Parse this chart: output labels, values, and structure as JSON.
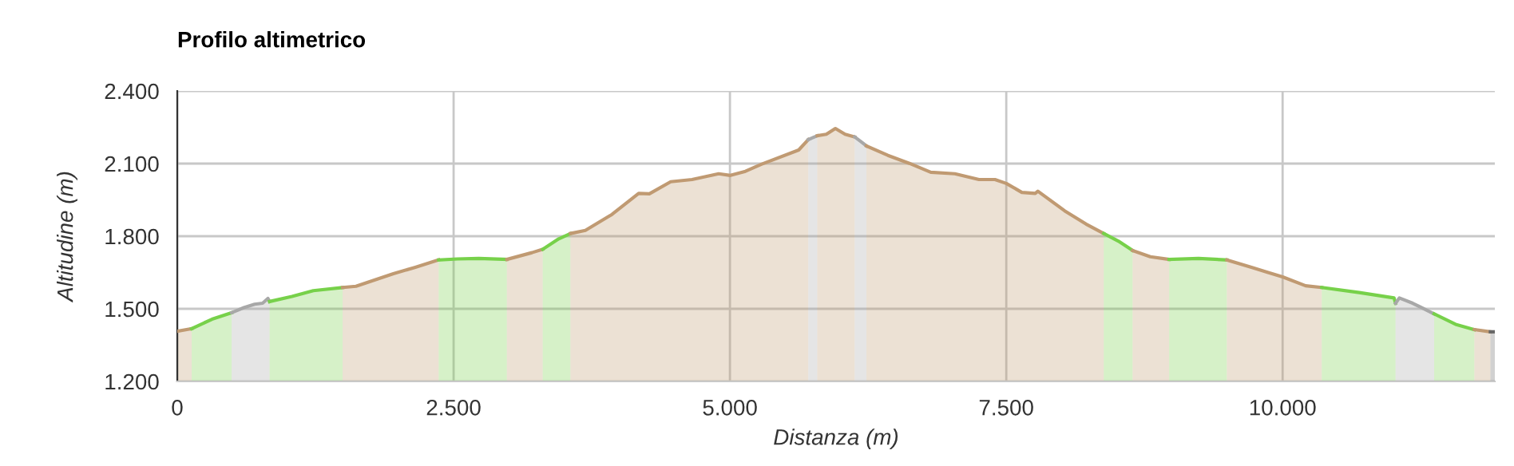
{
  "chart_data": {
    "type": "area",
    "title": "Profilo altimetrico",
    "xlabel": "Distanza (m)",
    "ylabel": "Altitudine (m)",
    "xlim": [
      0,
      11920
    ],
    "ylim": [
      1200,
      2400
    ],
    "xticks": [
      0,
      {
        "value": 2500,
        "label": "2.500"
      },
      {
        "value": 5000,
        "label": "5.000"
      },
      {
        "value": 7500,
        "label": "7.500"
      },
      {
        "value": 10000,
        "label": "10.000"
      }
    ],
    "yticks": [
      {
        "value": 1200,
        "label": "1.200"
      },
      {
        "value": 1500,
        "label": "1.500"
      },
      {
        "value": 1800,
        "label": "1.800"
      },
      {
        "value": 2100,
        "label": "2.100"
      },
      {
        "value": 2400,
        "label": "2.400"
      }
    ],
    "grid": true,
    "legend": false,
    "series": [
      {
        "color": "#c09a72",
        "x": [
          0,
          130
        ],
        "values": [
          1407,
          1418
        ]
      },
      {
        "color": "#77d14a",
        "x": [
          130,
          314,
          492
        ],
        "values": [
          1418,
          1457,
          1484
        ]
      },
      {
        "color": "#a8a8a8",
        "x": [
          492,
          603,
          700,
          772,
          820,
          835
        ],
        "values": [
          1484,
          1505,
          1519,
          1523,
          1543,
          1530
        ]
      },
      {
        "color": "#77d14a",
        "x": [
          835,
          1038,
          1231,
          1496
        ],
        "values": [
          1530,
          1551,
          1575,
          1588
        ]
      },
      {
        "color": "#c09a72",
        "x": [
          1496,
          1617,
          1810,
          1955,
          2148,
          2365
        ],
        "values": [
          1588,
          1593,
          1623,
          1645,
          1671,
          1702
        ]
      },
      {
        "color": "#77d14a",
        "x": [
          2365,
          2534,
          2727,
          2982
        ],
        "values": [
          1702,
          1706,
          1708,
          1704
        ]
      },
      {
        "color": "#c09a72",
        "x": [
          2982,
          3209,
          3306
        ],
        "values": [
          1704,
          1732,
          1746
        ]
      },
      {
        "color": "#77d14a",
        "x": [
          3306,
          3451,
          3557
        ],
        "values": [
          1746,
          1789,
          1811
        ]
      },
      {
        "color": "#c09a72",
        "x": [
          3557,
          3692,
          3933,
          4174,
          4271,
          4464,
          4657,
          4898,
          5004,
          5140,
          5284,
          5622,
          5709
        ],
        "values": [
          1811,
          1824,
          1890,
          1977,
          1975,
          2025,
          2034,
          2058,
          2051,
          2068,
          2097,
          2156,
          2199
        ]
      },
      {
        "color": "#a8a8a8",
        "x": [
          5709,
          5790
        ],
        "values": [
          2199,
          2215
        ]
      },
      {
        "color": "#c09a72",
        "x": [
          5790,
          5872,
          5954,
          6042,
          6129
        ],
        "values": [
          2215,
          2221,
          2245,
          2221,
          2210
        ]
      },
      {
        "color": "#a8a8a8",
        "x": [
          6129,
          6182,
          6235
        ],
        "values": [
          2210,
          2192,
          2173
        ]
      },
      {
        "color": "#c09a72",
        "x": [
          6235,
          6429,
          6623,
          6817,
          7035,
          7253,
          7398,
          7500,
          7641,
          7762,
          7786,
          8028,
          8222,
          8382
        ],
        "values": [
          2173,
          2134,
          2101,
          2064,
          2058,
          2034,
          2034,
          2018,
          1981,
          1977,
          1986,
          1905,
          1850,
          1811
        ]
      },
      {
        "color": "#77d14a",
        "x": [
          8382,
          8513,
          8643
        ],
        "values": [
          1811,
          1780,
          1741
        ]
      },
      {
        "color": "#c09a72",
        "x": [
          8643,
          8803,
          8973
        ],
        "values": [
          1741,
          1715,
          1704
        ]
      },
      {
        "color": "#77d14a",
        "x": [
          8973,
          9239,
          9496
        ],
        "values": [
          1704,
          1708,
          1702
        ]
      },
      {
        "color": "#c09a72",
        "x": [
          9496,
          9724,
          9869,
          10000,
          10208,
          10354
        ],
        "values": [
          1702,
          1671,
          1650,
          1632,
          1595,
          1588
        ]
      },
      {
        "color": "#77d14a",
        "x": [
          10354,
          10693,
          11008,
          11022
        ],
        "values": [
          1588,
          1567,
          1545,
          1523
        ]
      },
      {
        "color": "#a8a8a8",
        "x": [
          11022,
          11056,
          11177,
          11371
        ],
        "values": [
          1523,
          1545,
          1523,
          1479
        ]
      },
      {
        "color": "#77d14a",
        "x": [
          11371,
          11565,
          11735
        ],
        "values": [
          1479,
          1436,
          1414
        ]
      },
      {
        "color": "#c09a72",
        "x": [
          11735,
          11880
        ],
        "values": [
          1414,
          1405
        ]
      },
      {
        "color": "#666666",
        "x": [
          11880,
          11920
        ],
        "values": [
          1405,
          1405
        ]
      }
    ]
  }
}
